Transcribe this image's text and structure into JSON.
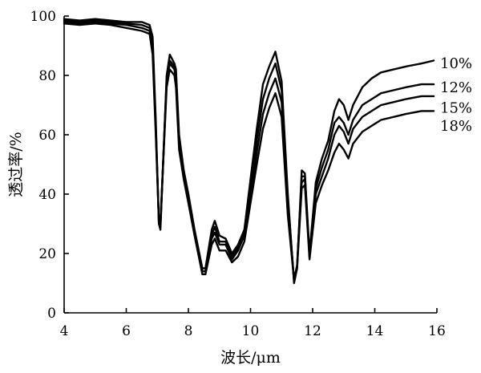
{
  "chart_data": {
    "type": "line",
    "title": "",
    "xlabel": "波长/μm",
    "ylabel": "透过率/%",
    "xlim": [
      4,
      16
    ],
    "ylim": [
      0,
      100
    ],
    "x_ticks": [
      4,
      6,
      8,
      10,
      12,
      14,
      16
    ],
    "y_ticks": [
      0,
      20,
      40,
      60,
      80,
      100
    ],
    "grid": false,
    "legend": "inline labels at right end of each curve",
    "series": [
      {
        "name": "10%",
        "x": [
          4.0,
          4.5,
          5.0,
          5.5,
          6.0,
          6.5,
          6.75,
          6.85,
          6.95,
          7.05,
          7.1,
          7.3,
          7.4,
          7.55,
          7.6,
          7.7,
          7.85,
          8.0,
          8.2,
          8.45,
          8.55,
          8.75,
          8.85,
          9.0,
          9.2,
          9.4,
          9.6,
          9.8,
          10.0,
          10.2,
          10.4,
          10.6,
          10.8,
          11.0,
          11.2,
          11.4,
          11.5,
          11.65,
          11.75,
          11.9,
          12.1,
          12.3,
          12.5,
          12.7,
          12.85,
          13.0,
          13.15,
          13.3,
          13.6,
          13.9,
          14.2,
          14.6,
          15.0,
          15.5,
          15.9
        ],
        "y": [
          99,
          98.5,
          99,
          98.5,
          98,
          98,
          97,
          93,
          65,
          30,
          28,
          80,
          87,
          84,
          82,
          60,
          48,
          40,
          28,
          15,
          15,
          28,
          31,
          26,
          25,
          20,
          23,
          28,
          45,
          62,
          77,
          83,
          88,
          78,
          40,
          10,
          15,
          48,
          47,
          20,
          44,
          52,
          58,
          68,
          72,
          70,
          65,
          70,
          76,
          79,
          81,
          82,
          83,
          84,
          85
        ]
      },
      {
        "name": "12%",
        "x": [
          4.0,
          4.5,
          5.0,
          5.5,
          6.0,
          6.5,
          6.75,
          6.85,
          6.95,
          7.05,
          7.1,
          7.3,
          7.4,
          7.55,
          7.6,
          7.7,
          7.85,
          8.0,
          8.2,
          8.45,
          8.55,
          8.75,
          8.85,
          9.0,
          9.2,
          9.4,
          9.6,
          9.8,
          10.0,
          10.2,
          10.4,
          10.6,
          10.8,
          11.0,
          11.2,
          11.4,
          11.5,
          11.65,
          11.75,
          11.9,
          12.1,
          12.3,
          12.5,
          12.7,
          12.85,
          13.0,
          13.15,
          13.3,
          13.6,
          13.9,
          14.2,
          14.6,
          15.0,
          15.5,
          15.9
        ],
        "y": [
          98.5,
          98,
          98.5,
          98,
          97.5,
          97,
          96,
          91,
          63,
          30,
          29,
          79,
          85,
          83,
          80,
          58,
          47,
          39,
          27,
          14,
          14,
          26,
          29,
          24,
          24,
          19,
          22,
          27,
          42,
          58,
          72,
          79,
          84,
          75,
          38,
          11,
          16,
          46,
          46,
          19,
          42,
          49,
          55,
          64,
          66,
          64,
          60,
          65,
          70,
          72,
          74,
          75,
          76,
          77,
          77
        ]
      },
      {
        "name": "15%",
        "x": [
          4.0,
          4.5,
          5.0,
          5.5,
          6.0,
          6.5,
          6.75,
          6.85,
          6.95,
          7.05,
          7.1,
          7.3,
          7.4,
          7.55,
          7.6,
          7.7,
          7.85,
          8.0,
          8.2,
          8.45,
          8.55,
          8.75,
          8.85,
          9.0,
          9.2,
          9.4,
          9.6,
          9.8,
          10.0,
          10.2,
          10.4,
          10.6,
          10.8,
          11.0,
          11.2,
          11.4,
          11.5,
          11.65,
          11.75,
          11.9,
          12.1,
          12.3,
          12.5,
          12.7,
          12.85,
          13.0,
          13.15,
          13.3,
          13.6,
          13.9,
          14.2,
          14.6,
          15.0,
          15.5,
          15.9
        ],
        "y": [
          98,
          97.5,
          98,
          97.5,
          97,
          96,
          95,
          89,
          62,
          31,
          30,
          78,
          84,
          82,
          78,
          57,
          46,
          38,
          27,
          14,
          14,
          25,
          27,
          23,
          23,
          18,
          21,
          26,
          40,
          54,
          67,
          74,
          79,
          71,
          36,
          11,
          16,
          44,
          45,
          19,
          40,
          46,
          52,
          60,
          63,
          61,
          57,
          62,
          66,
          68,
          70,
          71,
          72,
          73,
          73
        ]
      },
      {
        "name": "18%",
        "x": [
          4.0,
          4.5,
          5.0,
          5.5,
          6.0,
          6.5,
          6.75,
          6.85,
          6.95,
          7.05,
          7.1,
          7.3,
          7.4,
          7.55,
          7.6,
          7.7,
          7.85,
          8.0,
          8.2,
          8.45,
          8.55,
          8.75,
          8.85,
          9.0,
          9.2,
          9.4,
          9.6,
          9.8,
          10.0,
          10.2,
          10.4,
          10.6,
          10.8,
          11.0,
          11.2,
          11.4,
          11.5,
          11.65,
          11.75,
          11.9,
          12.1,
          12.3,
          12.5,
          12.7,
          12.85,
          13.0,
          13.15,
          13.3,
          13.6,
          13.9,
          14.2,
          14.6,
          15.0,
          15.5,
          15.9
        ],
        "y": [
          97.5,
          97,
          97.5,
          97,
          96,
          95,
          94,
          87,
          60,
          31,
          30,
          76,
          82,
          80,
          76,
          55,
          45,
          37,
          26,
          13,
          13,
          23,
          25,
          21,
          21,
          17,
          19,
          24,
          37,
          50,
          62,
          69,
          74,
          66,
          33,
          11,
          15,
          42,
          43,
          18,
          37,
          43,
          48,
          54,
          57,
          55,
          52,
          57,
          61,
          63,
          65,
          66,
          67,
          68,
          68
        ]
      }
    ],
    "series_labels": [
      {
        "text": "10%",
        "y": 84
      },
      {
        "text": "12%",
        "y": 76
      },
      {
        "text": "15%",
        "y": 69
      },
      {
        "text": "18%",
        "y": 63
      }
    ]
  }
}
